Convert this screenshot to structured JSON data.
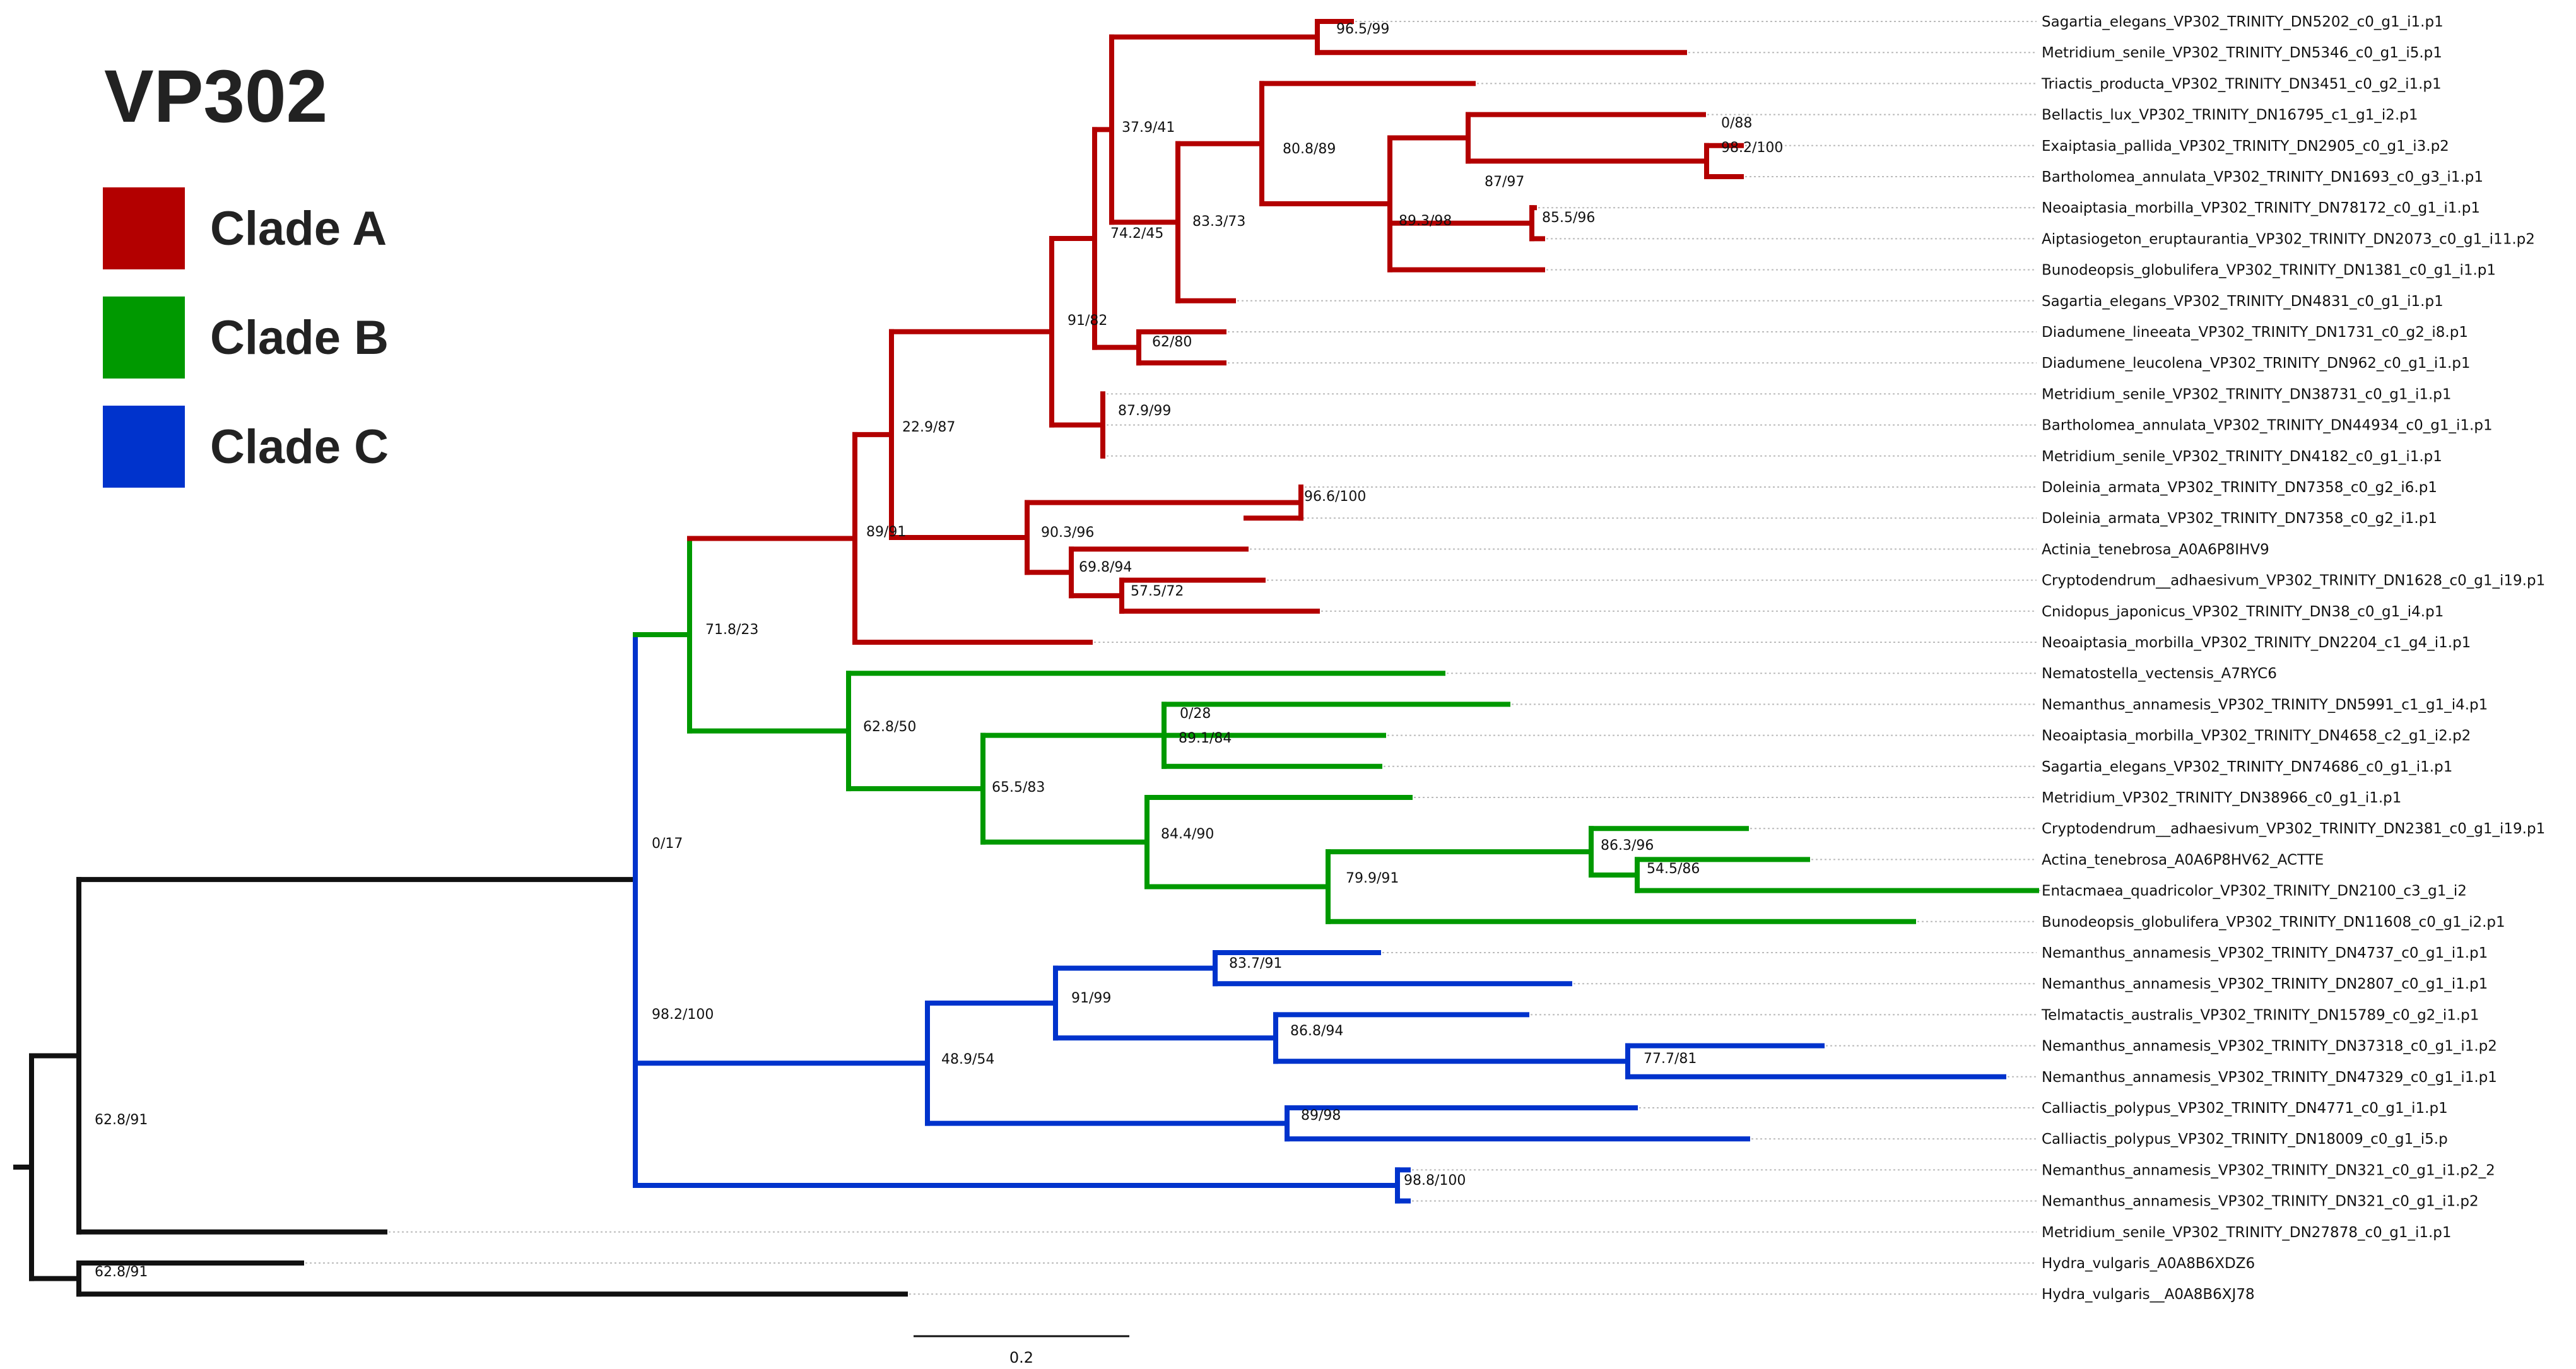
{
  "title": "VP302",
  "legend": [
    {
      "label": "Clade A",
      "color": "#b30000"
    },
    {
      "label": "Clade B",
      "color": "#009900"
    },
    {
      "label": "Clade C",
      "color": "#0033cc"
    }
  ],
  "colors": {
    "backbone": "#111111",
    "guide": "#bbbbbb"
  },
  "scale_bar_label": "0.2",
  "leaves": [
    "Sagartia_elegans_VP302_TRINITY_DN5202_c0_g1_i1.p1",
    "Metridium_senile_VP302_TRINITY_DN5346_c0_g1_i5.p1",
    "Triactis_producta_VP302_TRINITY_DN3451_c0_g2_i1.p1",
    "Bellactis_lux_VP302_TRINITY_DN16795_c1_g1_i2.p1",
    "Exaiptasia_pallida_VP302_TRINITY_DN2905_c0_g1_i3.p2",
    "Bartholomea_annulata_VP302_TRINITY_DN1693_c0_g3_i1.p1",
    "Neoaiptasia_morbilla_VP302_TRINITY_DN78172_c0_g1_i1.p1",
    "Aiptasiogeton_eruptaurantia_VP302_TRINITY_DN2073_c0_g1_i11.p2",
    "Bunodeopsis_globulifera_VP302_TRINITY_DN1381_c0_g1_i1.p1",
    "Sagartia_elegans_VP302_TRINITY_DN4831_c0_g1_i1.p1",
    "Diadumene_lineeata_VP302_TRINITY_DN1731_c0_g2_i8.p1",
    "Diadumene_leucolena_VP302_TRINITY_DN962_c0_g1_i1.p1",
    "Metridium_senile_VP302_TRINITY_DN38731_c0_g1_i1.p1",
    "Bartholomea_annulata_VP302_TRINITY_DN44934_c0_g1_i1.p1",
    "Metridium_senile_VP302_TRINITY_DN4182_c0_g1_i1.p1",
    "Doleinia_armata_VP302_TRINITY_DN7358_c0_g2_i6.p1",
    "Doleinia_armata_VP302_TRINITY_DN7358_c0_g2_i1.p1",
    "Actinia_tenebrosa_A0A6P8IHV9",
    "Cryptodendrum__adhaesivum_VP302_TRINITY_DN1628_c0_g1_i19.p1",
    "Cnidopus_japonicus_VP302_TRINITY_DN38_c0_g1_i4.p1",
    "Neoaiptasia_morbilla_VP302_TRINITY_DN2204_c1_g4_i1.p1",
    "Nematostella_vectensis_A7RYC6",
    "Nemanthus_annamesis_VP302_TRINITY_DN5991_c1_g1_i4.p1",
    "Neoaiptasia_morbilla_VP302_TRINITY_DN4658_c2_g1_i2.p2",
    "Sagartia_elegans_VP302_TRINITY_DN74686_c0_g1_i1.p1",
    "Metridium_VP302_TRINITY_DN38966_c0_g1_i1.p1",
    "Cryptodendrum__adhaesivum_VP302_TRINITY_DN2381_c0_g1_i19.p1",
    "Actina_tenebrosa_A0A6P8HV62_ACTTE",
    "Entacmaea_quadricolor_VP302_TRINITY_DN2100_c3_g1_i2",
    "Bunodeopsis_globulifera_VP302_TRINITY_DN11608_c0_g1_i2.p1",
    "Nemanthus_annamesis_VP302_TRINITY_DN4737_c0_g1_i1.p1",
    "Nemanthus_annamesis_VP302_TRINITY_DN2807_c0_g1_i1.p1",
    "Telmatactis_australis_VP302_TRINITY_DN15789_c0_g2_i1.p1",
    "Nemanthus_annamesis_VP302_TRINITY_DN37318_c0_g1_i1.p2",
    "Nemanthus_annamesis_VP302_TRINITY_DN47329_c0_g1_i1.p1",
    "Calliactis_polypus_VP302_TRINITY_DN4771_c0_g1_i1.p1",
    "Calliactis_polypus_VP302_TRINITY_DN18009_c0_g1_i5.p",
    "Nemanthus_annamesis_VP302_TRINITY_DN321_c0_g1_i1.p2_2",
    "Nemanthus_annamesis_VP302_TRINITY_DN321_c0_g1_i1.p2",
    "Metridium_senile_VP302_TRINITY_DN27878_c0_g1_i1.p1",
    "Hydra_vulgaris_A0A8B6XDZ6",
    "Hydra_vulgaris__A0A8B6XJ78"
  ],
  "support_labels": [
    "96.5/99",
    "0/88",
    "98.2/100",
    "87/97",
    "85.5/96",
    "89.3/98",
    "80.8/89",
    "83.3/73",
    "37.9/41",
    "74.2/45",
    "62/80",
    "91/82",
    "87.9/99",
    "22.9/87",
    "96.6/100",
    "57.5/72",
    "69.8/94",
    "90.3/96",
    "89/91",
    "71.8/23",
    "0/28",
    "89.1/84",
    "65.5/83",
    "54.5/86",
    "86.3/96",
    "79.9/91",
    "84.4/90",
    "62.8/50",
    "0/17",
    "83.7/91",
    "91/99",
    "86.8/94",
    "77.7/81",
    "89/98",
    "48.9/54",
    "98.8/100",
    "98.2/100",
    "62.8/91",
    "62.8/91"
  ]
}
